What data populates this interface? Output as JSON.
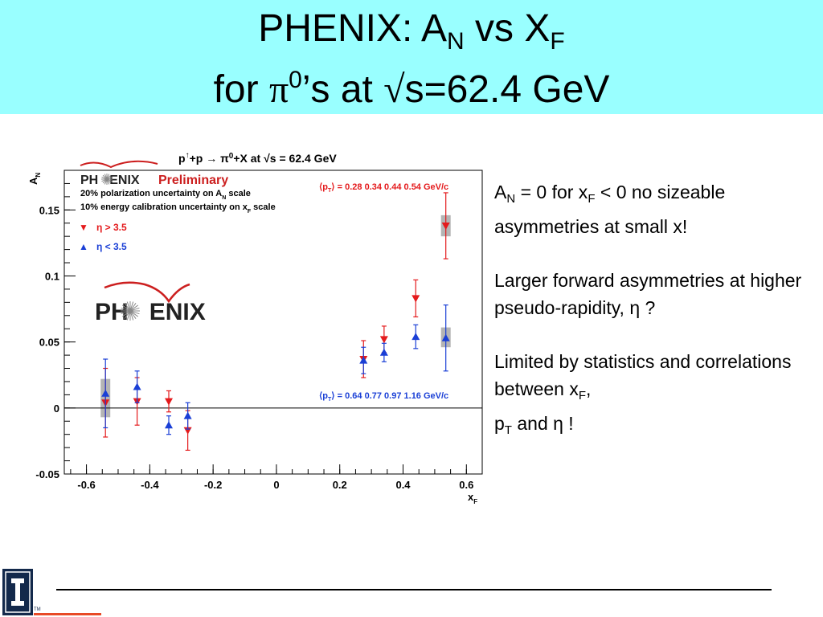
{
  "colors": {
    "title_band": "#99ffff",
    "red": "#e41a1c",
    "blue": "#1a3fd6",
    "band": "#b4b4b4",
    "logo_blue": "#13294b",
    "logo_orange": "#e84a27",
    "phenix_red": "#cc1f1f"
  },
  "title": {
    "line1_a": "PHENIX: A",
    "line1_sub_n": "N",
    "line1_b": " vs X",
    "line1_sub_f": "F",
    "line2_a": "for ",
    "line2_pi": "π",
    "line2_sup": "0",
    "line2_b": "’s at ",
    "line2_sqrt": "√",
    "line2_c": "s=62.4 GeV"
  },
  "plot_text": {
    "header_a": "p",
    "header_arrow_up": "↑",
    "header_b": "+p ",
    "header_arrow": "→",
    "header_c": " π",
    "header_sup": "0",
    "header_d": "+X at ",
    "header_sqrt": "√",
    "header_e": "s = 62.4 GeV",
    "phenix_label_a": "PH",
    "phenix_label_b": "ENIX",
    "preliminary": "Preliminary",
    "note1_a": "20% polarization uncertainty on A",
    "note1_sub": "N",
    "note1_b": " scale",
    "note2_a": "10% energy calibration uncertainty on x",
    "note2_sub": "F",
    "note2_b": " scale",
    "legend_red_marker": "▼",
    "legend_red": "η > 3.5",
    "legend_blue_marker": "▲",
    "legend_blue": "η < 3.5",
    "pt_red_a": "⟨p",
    "pt_red_sub": "T",
    "pt_red_b": "⟩ = 0.28  0.34  0.44  0.54 GeV/c",
    "pt_blue_a": "⟨p",
    "pt_blue_sub": "T",
    "pt_blue_b": "⟩ = 0.64  0.77  0.97  1.16 GeV/c",
    "big_logo_a": "PH",
    "big_logo_b": "ENIX"
  },
  "chart_data": {
    "type": "scatter",
    "xlabel": "x",
    "xlabel_sub": "F",
    "ylabel": "A",
    "ylabel_sub": "N",
    "xlim": [
      -0.67,
      0.65
    ],
    "ylim": [
      -0.05,
      0.18
    ],
    "x_ticks": [
      -0.6,
      -0.4,
      -0.2,
      0,
      0.2,
      0.4,
      0.6
    ],
    "x_tick_labels": [
      "-0.6",
      "-0.4",
      "-0.2",
      "0",
      "0.2",
      "0.4",
      "0.6"
    ],
    "y_ticks": [
      -0.05,
      0,
      0.05,
      0.1,
      0.15
    ],
    "y_tick_labels": [
      "-0.05",
      "0",
      "0.05",
      "0.1",
      "0.15"
    ],
    "zero_line": true,
    "grid": false,
    "legend_position": "top-left",
    "series": [
      {
        "name": "η > 3.5",
        "marker": "triangle-down",
        "points": [
          {
            "x": -0.54,
            "y": 0.004,
            "err": 0.026
          },
          {
            "x": -0.44,
            "y": 0.005,
            "err": 0.018
          },
          {
            "x": -0.34,
            "y": 0.005,
            "err": 0.008
          },
          {
            "x": -0.28,
            "y": -0.017,
            "err": 0.015
          },
          {
            "x": 0.275,
            "y": 0.037,
            "err": 0.014
          },
          {
            "x": 0.34,
            "y": 0.052,
            "err": 0.01
          },
          {
            "x": 0.44,
            "y": 0.083,
            "err": 0.014
          },
          {
            "x": 0.535,
            "y": 0.138,
            "err": 0.025
          }
        ]
      },
      {
        "name": "η < 3.5",
        "marker": "triangle-up",
        "points": [
          {
            "x": -0.54,
            "y": 0.011,
            "err": 0.026
          },
          {
            "x": -0.44,
            "y": 0.016,
            "err": 0.012
          },
          {
            "x": -0.34,
            "y": -0.013,
            "err": 0.007
          },
          {
            "x": -0.28,
            "y": -0.006,
            "err": 0.01
          },
          {
            "x": 0.275,
            "y": 0.036,
            "err": 0.01
          },
          {
            "x": 0.34,
            "y": 0.042,
            "err": 0.007
          },
          {
            "x": 0.44,
            "y": 0.054,
            "err": 0.009
          },
          {
            "x": 0.535,
            "y": 0.053,
            "err": 0.025
          }
        ]
      }
    ],
    "systematic_bands": [
      {
        "x": -0.54,
        "y_low": -0.007,
        "y_high": 0.022
      },
      {
        "x": 0.535,
        "y_low": 0.13,
        "y_high": 0.146
      },
      {
        "x": 0.535,
        "y_low": 0.046,
        "y_high": 0.061
      }
    ]
  },
  "bullets": {
    "b1_a": "A",
    "b1_sub_n": "N",
    "b1_b": " = 0 for x",
    "b1_sub_f": "F",
    "b1_c": " < 0 no sizeable asymmetries at small x!",
    "b2": "Larger forward asymmetries at higher pseudo-rapidity, η ?",
    "b3_a": "Limited by statistics and correlations between x",
    "b3_sub_f": "F",
    "b3_b": ",",
    "b3_c": "p",
    "b3_sub_t": "T",
    "b3_d": " and η !"
  },
  "logo": {
    "tm": "TM"
  }
}
